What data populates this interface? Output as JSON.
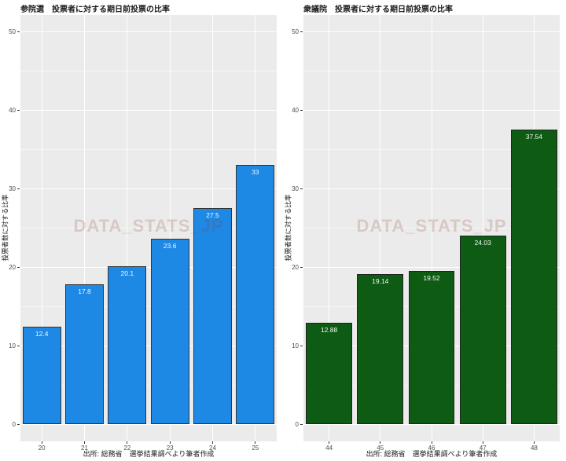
{
  "watermark": {
    "text": "DATA_STATS_JP",
    "color": "rgba(140,60,40,0.2)",
    "hex_on_gray": "#D8C8C4"
  },
  "panel": {
    "background": "#EBEBEB",
    "grid_color": "#FFFFFF",
    "tick_label_color": "#4D4D4D"
  },
  "chart_data": [
    {
      "type": "bar",
      "title": "参院選　投票者に対する期日前投票の比率",
      "ylabel": "投票者数に対する比率",
      "xlabel": "",
      "caption": "出所: 総務省　選挙結果調べより筆者作成",
      "categories": [
        "20",
        "21",
        "22",
        "23",
        "24",
        "25"
      ],
      "values": [
        12.4,
        17.8,
        20.1,
        23.6,
        27.5,
        33
      ],
      "value_labels": [
        "12.4",
        "17.8",
        "20.1",
        "23.6",
        "27.5",
        "33"
      ],
      "ylim": [
        0,
        50
      ],
      "yticks": [
        0,
        10,
        20,
        30,
        40,
        50
      ],
      "grid": true,
      "legend": "none",
      "bar_color": "#1E88E5",
      "bar_border_color": "#333333",
      "value_label_color": "#FFFFFF"
    },
    {
      "type": "bar",
      "title": "衆議院　投票者に対する期日前投票の比率",
      "ylabel": "投票者数に対する比率",
      "xlabel": "",
      "caption": "出所: 総務省　選挙結果調べより筆者作成",
      "categories": [
        "44",
        "45",
        "46",
        "47",
        "48"
      ],
      "values": [
        12.88,
        19.14,
        19.52,
        24.03,
        37.54
      ],
      "value_labels": [
        "12.88",
        "19.14",
        "19.52",
        "24.03",
        "37.54"
      ],
      "ylim": [
        0,
        50
      ],
      "yticks": [
        0,
        10,
        20,
        30,
        40,
        50
      ],
      "grid": true,
      "legend": "none",
      "bar_color": "#0E5C14",
      "bar_border_color": "#222222",
      "value_label_color": "#FFFFFF"
    }
  ]
}
